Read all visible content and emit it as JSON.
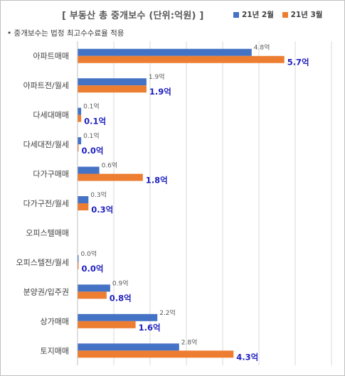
{
  "title": "[ 부동산 총 중개보수 (단위:억원) ]",
  "note": "• 중개보수는 법정 최고수수료율 적용",
  "colors": {
    "series1": "#4472c4",
    "series2": "#ed7d31",
    "grid": "#d9d9d9",
    "label2": "#1f1fbf"
  },
  "chart_data": {
    "type": "bar",
    "orientation": "horizontal",
    "unit_suffix": "억",
    "categories": [
      "아파트매매",
      "아파트전/월세",
      "다세대매매",
      "다세대전/월세",
      "다가구매매",
      "다가구전/월세",
      "오피스텔매매",
      "오피스텔전/월세",
      "분양권/입주권",
      "상가매매",
      "토지매매"
    ],
    "series": [
      {
        "name": "21년 2월",
        "values": [
          4.8,
          1.9,
          0.1,
          0.1,
          0.6,
          0.3,
          null,
          0.0,
          0.9,
          2.2,
          2.8
        ]
      },
      {
        "name": "21년 3월",
        "values": [
          5.7,
          1.9,
          0.1,
          0.0,
          1.8,
          0.3,
          null,
          0.0,
          0.8,
          1.6,
          4.3
        ]
      }
    ],
    "xlim": [
      0,
      7
    ],
    "grid": true,
    "legend": "top-right"
  }
}
